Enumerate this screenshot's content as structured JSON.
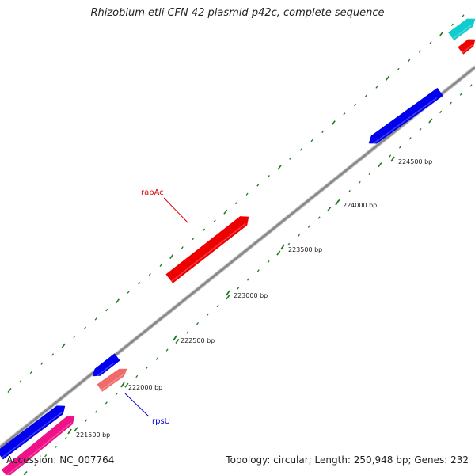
{
  "title": "Rhizobium etli CFN 42 plasmid p42c, complete sequence",
  "footer": {
    "accession": "Accession: NC_007764",
    "summary": "Topology: circular; Length: 250,948 bp; Genes: 232"
  },
  "colors": {
    "backbone": "#8a8a8a",
    "ticks": "#1f7a1f",
    "blue": "#0000ee",
    "red": "#ee0000",
    "pink": "#f06a6a",
    "magenta": "#ee1188",
    "cyan": "#11cccc",
    "label_red": "#dd0000",
    "label_blue": "#0000dd"
  },
  "ticks": [
    {
      "label": "221500 bp"
    },
    {
      "label": "222000 bp"
    },
    {
      "label": "222500 bp"
    },
    {
      "label": "223000 bp"
    },
    {
      "label": "223500 bp"
    },
    {
      "label": "224000 bp"
    },
    {
      "label": "224500 bp"
    }
  ],
  "genes": [
    {
      "name": "rapAc",
      "color_key": "red",
      "labeled": true
    },
    {
      "name": "rpsU",
      "color_key": "pink",
      "labeled": true
    },
    {
      "name": "",
      "color_key": "blue",
      "labeled": false
    },
    {
      "name": "",
      "color_key": "blue",
      "labeled": false
    },
    {
      "name": "",
      "color_key": "magenta",
      "labeled": false
    },
    {
      "name": "",
      "color_key": "cyan",
      "labeled": false
    }
  ]
}
